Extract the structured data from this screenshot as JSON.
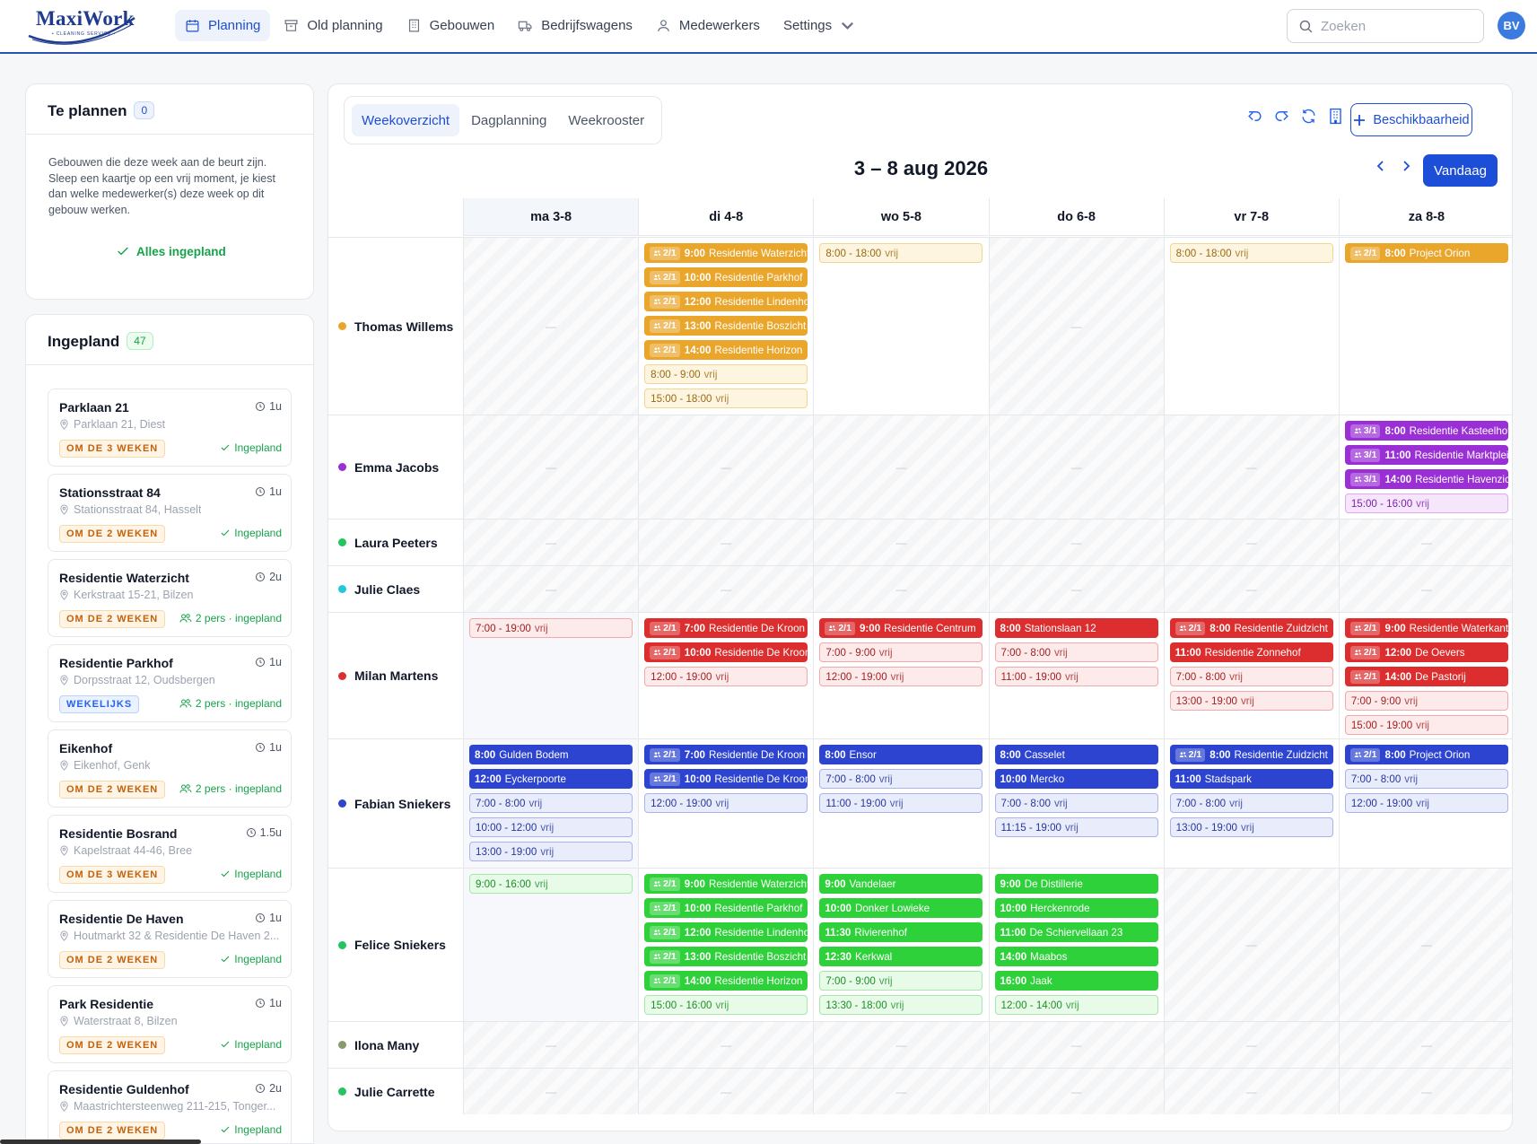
{
  "brand": {
    "name": "MaxiWork",
    "tagline": "• CLEANING SERVICE •"
  },
  "nav": [
    {
      "label": "Planning",
      "icon": "calendar-icon",
      "active": true
    },
    {
      "label": "Old planning",
      "icon": "archive-icon",
      "active": false
    },
    {
      "label": "Gebouwen",
      "icon": "building-icon",
      "active": false
    },
    {
      "label": "Bedrijfswagens",
      "icon": "truck-icon",
      "active": false
    },
    {
      "label": "Medewerkers",
      "icon": "user-icon",
      "active": false
    },
    {
      "label": "Settings",
      "icon": "chevron-down-icon",
      "active": false
    }
  ],
  "search": {
    "placeholder": "Zoeken",
    "value": ""
  },
  "user": {
    "initials": "BV"
  },
  "te_plannen": {
    "title": "Te plannen",
    "count": "0",
    "description": "Gebouwen die deze week aan de beurt zijn. Sleep een kaartje op een vrij moment, je kiest dan welke medewerker(s) deze week op dit gebouw werken.",
    "status": "Alles ingepland"
  },
  "ingepland": {
    "title": "Ingepland",
    "count": "47",
    "items": [
      {
        "name": "Parklaan 21",
        "duration": "1u",
        "address": "Parklaan 21, Diest",
        "frequency": "OM DE 3 WEKEN",
        "freq_color": "orange",
        "status": "Ingepland",
        "multi": false
      },
      {
        "name": "Stationsstraat 84",
        "duration": "1u",
        "address": "Stationsstraat 84, Hasselt",
        "frequency": "OM DE 2 WEKEN",
        "freq_color": "orange",
        "status": "Ingepland",
        "multi": false
      },
      {
        "name": "Residentie Waterzicht",
        "duration": "2u",
        "address": "Kerkstraat 15-21, Bilzen",
        "frequency": "OM DE 2 WEKEN",
        "freq_color": "orange",
        "status": "2 pers · ingepland",
        "multi": true
      },
      {
        "name": "Residentie Parkhof",
        "duration": "1u",
        "address": "Dorpsstraat 12, Oudsbergen",
        "frequency": "WEKELIJKS",
        "freq_color": "blue",
        "status": "2 pers · ingepland",
        "multi": true
      },
      {
        "name": "Eikenhof",
        "duration": "1u",
        "address": "Eikenhof, Genk",
        "frequency": "OM DE 2 WEKEN",
        "freq_color": "orange",
        "status": "2 pers · ingepland",
        "multi": true
      },
      {
        "name": "Residentie Bosrand",
        "duration": "1.5u",
        "address": "Kapelstraat 44-46, Bree",
        "frequency": "OM DE 3 WEKEN",
        "freq_color": "orange",
        "status": "Ingepland",
        "multi": false
      },
      {
        "name": "Residentie De Haven",
        "duration": "1u",
        "address": "Houtmarkt 32 & Residentie De Haven 2...",
        "frequency": "OM DE 2 WEKEN",
        "freq_color": "orange",
        "status": "Ingepland",
        "multi": false
      },
      {
        "name": "Park Residentie",
        "duration": "1u",
        "address": "Waterstraat 8, Bilzen",
        "frequency": "OM DE 2 WEKEN",
        "freq_color": "orange",
        "status": "Ingepland",
        "multi": false
      },
      {
        "name": "Residentie Guldenhof",
        "duration": "2u",
        "address": "Maastrichtersteenweg 211-215, Tonger...",
        "frequency": "OM DE 2 WEKEN",
        "freq_color": "orange",
        "status": "Ingepland",
        "multi": false
      }
    ]
  },
  "views": [
    {
      "label": "Weekoverzicht",
      "active": true
    },
    {
      "label": "Dagplanning",
      "active": false
    },
    {
      "label": "Weekrooster",
      "active": false
    }
  ],
  "actions": {
    "availability": "Beschikbaarheid",
    "today": "Vandaag"
  },
  "week_title": "3 – 8 aug 2026",
  "days": [
    "ma 3-8",
    "di 4-8",
    "wo 5-8",
    "do 6-8",
    "vr 7-8",
    "za 8-8"
  ],
  "colors": {
    "primary": "#1d4ed8",
    "orange": "#e9a62b",
    "purple": "#9a2fd6",
    "red": "#dc2e2e",
    "blue": "#2d44d0",
    "green": "#2fd13a"
  },
  "free_label": "vrij",
  "dash": "—",
  "employees": [
    {
      "name": "Thomas Willems",
      "color": "orange",
      "cells": [
        {
          "off": true,
          "today": true,
          "events": []
        },
        {
          "off": false,
          "events": [
            {
              "c": "2/1",
              "t": "9:00",
              "n": "Residentie Waterzicht"
            },
            {
              "c": "2/1",
              "t": "10:00",
              "n": "Residentie Parkhof"
            },
            {
              "c": "2/1",
              "t": "12:00",
              "n": "Residentie Lindenhof"
            },
            {
              "c": "2/1",
              "t": "13:00",
              "n": "Residentie Boszicht"
            },
            {
              "c": "2/1",
              "t": "14:00",
              "n": "Residentie Horizon"
            },
            {
              "free": "8:00 - 9:00"
            },
            {
              "free": "15:00 - 18:00"
            }
          ]
        },
        {
          "off": false,
          "events": [
            {
              "free": "8:00 - 18:00"
            }
          ]
        },
        {
          "off": true,
          "events": []
        },
        {
          "off": false,
          "events": [
            {
              "free": "8:00 - 18:00"
            }
          ]
        },
        {
          "off": false,
          "events": [
            {
              "c": "2/1",
              "t": "8:00",
              "n": "Project Orion"
            }
          ]
        }
      ]
    },
    {
      "name": "Emma Jacobs",
      "color": "purple",
      "cells": [
        {
          "off": true,
          "events": []
        },
        {
          "off": true,
          "events": []
        },
        {
          "off": true,
          "events": []
        },
        {
          "off": true,
          "events": []
        },
        {
          "off": true,
          "events": []
        },
        {
          "off": false,
          "events": [
            {
              "c": "3/1",
              "t": "8:00",
              "n": "Residentie Kasteelhof"
            },
            {
              "c": "3/1",
              "t": "11:00",
              "n": "Residentie Marktplein"
            },
            {
              "c": "3/1",
              "t": "14:00",
              "n": "Residentie Havenzicht"
            },
            {
              "free": "15:00 - 16:00"
            }
          ]
        }
      ]
    },
    {
      "name": "Laura Peeters",
      "color": "#22c55e",
      "cells": [
        {
          "off": true,
          "events": []
        },
        {
          "off": true,
          "events": []
        },
        {
          "off": true,
          "events": []
        },
        {
          "off": true,
          "events": []
        },
        {
          "off": true,
          "events": []
        },
        {
          "off": true,
          "events": []
        }
      ]
    },
    {
      "name": "Julie Claes",
      "color": "#22c9dc",
      "cells": [
        {
          "off": true,
          "events": []
        },
        {
          "off": true,
          "events": []
        },
        {
          "off": true,
          "events": []
        },
        {
          "off": true,
          "events": []
        },
        {
          "off": true,
          "events": []
        },
        {
          "off": true,
          "events": []
        }
      ]
    },
    {
      "name": "Milan Martens",
      "color": "red",
      "cells": [
        {
          "off": false,
          "today": true,
          "events": [
            {
              "free": "7:00 - 19:00"
            }
          ]
        },
        {
          "off": false,
          "events": [
            {
              "c": "2/1",
              "t": "7:00",
              "n": "Residentie De Kroon"
            },
            {
              "c": "2/1",
              "t": "10:00",
              "n": "Residentie De Kroon"
            },
            {
              "free": "12:00 - 19:00"
            }
          ]
        },
        {
          "off": false,
          "events": [
            {
              "c": "2/1",
              "t": "9:00",
              "n": "Residentie Centrum"
            },
            {
              "free": "7:00 - 9:00"
            },
            {
              "free": "12:00 - 19:00"
            }
          ]
        },
        {
          "off": false,
          "events": [
            {
              "t": "8:00",
              "n": "Stationslaan 12"
            },
            {
              "free": "7:00 - 8:00"
            },
            {
              "free": "11:00 - 19:00"
            }
          ]
        },
        {
          "off": false,
          "events": [
            {
              "c": "2/1",
              "t": "8:00",
              "n": "Residentie Zuidzicht"
            },
            {
              "t": "11:00",
              "n": "Residentie Zonnehof"
            },
            {
              "free": "7:00 - 8:00"
            },
            {
              "free": "13:00 - 19:00"
            }
          ]
        },
        {
          "off": false,
          "events": [
            {
              "c": "2/1",
              "t": "9:00",
              "n": "Residentie Waterkant"
            },
            {
              "c": "2/1",
              "t": "12:00",
              "n": "De Oevers"
            },
            {
              "c": "2/1",
              "t": "14:00",
              "n": "De Pastorij"
            },
            {
              "free": "7:00 - 9:00"
            },
            {
              "free": "15:00 - 19:00"
            }
          ]
        }
      ]
    },
    {
      "name": "Fabian Sniekers",
      "color": "blue",
      "cells": [
        {
          "off": false,
          "today": true,
          "events": [
            {
              "t": "8:00",
              "n": "Gulden Bodem"
            },
            {
              "t": "12:00",
              "n": "Eyckerpoorte"
            },
            {
              "free": "7:00 - 8:00"
            },
            {
              "free": "10:00 - 12:00"
            },
            {
              "free": "13:00 - 19:00"
            }
          ]
        },
        {
          "off": false,
          "events": [
            {
              "c": "2/1",
              "t": "7:00",
              "n": "Residentie De Kroon"
            },
            {
              "c": "2/1",
              "t": "10:00",
              "n": "Residentie De Kroon"
            },
            {
              "free": "12:00 - 19:00"
            }
          ]
        },
        {
          "off": false,
          "events": [
            {
              "t": "8:00",
              "n": "Ensor"
            },
            {
              "free": "7:00 - 8:00"
            },
            {
              "free": "11:00 - 19:00"
            }
          ]
        },
        {
          "off": false,
          "events": [
            {
              "t": "8:00",
              "n": "Casselet"
            },
            {
              "t": "10:00",
              "n": "Mercko"
            },
            {
              "free": "7:00 - 8:00"
            },
            {
              "free": "11:15 - 19:00"
            }
          ]
        },
        {
          "off": false,
          "events": [
            {
              "c": "2/1",
              "t": "8:00",
              "n": "Residentie Zuidzicht"
            },
            {
              "t": "11:00",
              "n": "Stadspark"
            },
            {
              "free": "7:00 - 8:00"
            },
            {
              "free": "13:00 - 19:00"
            }
          ]
        },
        {
          "off": false,
          "events": [
            {
              "c": "2/1",
              "t": "8:00",
              "n": "Project Orion"
            },
            {
              "free": "7:00 - 8:00"
            },
            {
              "free": "12:00 - 19:00"
            }
          ]
        }
      ]
    },
    {
      "name": "Felice Sniekers",
      "color": "#22c55e",
      "ev": "green",
      "cells": [
        {
          "off": false,
          "today": true,
          "events": [
            {
              "free": "9:00 - 16:00"
            }
          ]
        },
        {
          "off": false,
          "events": [
            {
              "c": "2/1",
              "t": "9:00",
              "n": "Residentie Waterzicht"
            },
            {
              "c": "2/1",
              "t": "10:00",
              "n": "Residentie Parkhof"
            },
            {
              "c": "2/1",
              "t": "12:00",
              "n": "Residentie Lindenhof"
            },
            {
              "c": "2/1",
              "t": "13:00",
              "n": "Residentie Boszicht"
            },
            {
              "c": "2/1",
              "t": "14:00",
              "n": "Residentie Horizon"
            },
            {
              "free": "15:00 - 16:00"
            }
          ]
        },
        {
          "off": false,
          "events": [
            {
              "t": "9:00",
              "n": "Vandelaer"
            },
            {
              "t": "10:00",
              "n": "Donker Lowieke"
            },
            {
              "t": "11:30",
              "n": "Rivierenhof"
            },
            {
              "t": "12:30",
              "n": "Kerkwal"
            },
            {
              "free": "7:00 - 9:00"
            },
            {
              "free": "13:30 - 18:00"
            }
          ]
        },
        {
          "off": false,
          "events": [
            {
              "t": "9:00",
              "n": "De Distillerie"
            },
            {
              "t": "10:00",
              "n": "Herckenrode"
            },
            {
              "t": "11:00",
              "n": "De Schiervellaan 23"
            },
            {
              "t": "14:00",
              "n": "Maabos"
            },
            {
              "t": "16:00",
              "n": "Jaak"
            },
            {
              "free": "12:00 - 14:00"
            }
          ]
        },
        {
          "off": true,
          "events": []
        },
        {
          "off": true,
          "events": []
        }
      ]
    },
    {
      "name": "Ilona Many",
      "color": "#8a9a6b",
      "cells": [
        {
          "off": true,
          "events": []
        },
        {
          "off": true,
          "events": []
        },
        {
          "off": true,
          "events": []
        },
        {
          "off": true,
          "events": []
        },
        {
          "off": true,
          "events": []
        },
        {
          "off": true,
          "events": []
        }
      ]
    },
    {
      "name": "Julie Carrette",
      "color": "#22c55e",
      "cells": [
        {
          "off": true,
          "events": []
        },
        {
          "off": true,
          "events": []
        },
        {
          "off": true,
          "events": []
        },
        {
          "off": true,
          "events": []
        },
        {
          "off": true,
          "events": []
        },
        {
          "off": true,
          "events": []
        }
      ]
    }
  ]
}
